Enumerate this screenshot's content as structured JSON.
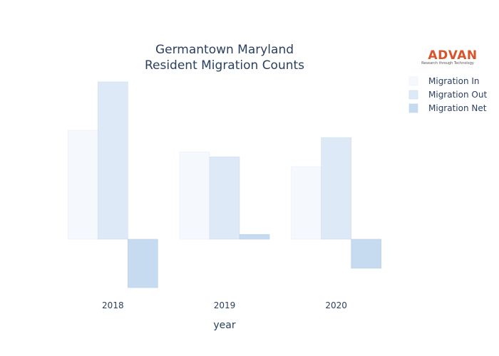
{
  "logo": {
    "name": "ADVAN",
    "tagline": "Research through Technology"
  },
  "chart_data": {
    "type": "bar",
    "title_lines": [
      "Germantown Maryland",
      "Resident Migration Counts"
    ],
    "xlabel": "year",
    "ylabel": "",
    "categories": [
      "2018",
      "2019",
      "2020"
    ],
    "ylim": [
      -1000,
      3250
    ],
    "grid": false,
    "legend_position": "top-right",
    "series": [
      {
        "name": "Migration In",
        "values": [
          2250,
          1800,
          1500
        ],
        "color": "#f5f9fe",
        "stroke": "#e6eef8"
      },
      {
        "name": "Migration Out",
        "values": [
          3250,
          1700,
          2100
        ],
        "color": "#dde9f6",
        "stroke": "#cfdef0"
      },
      {
        "name": "Migration Net",
        "values": [
          -1000,
          100,
          -600
        ],
        "color": "#c6dbf0",
        "stroke": "#b8d0ea"
      }
    ]
  }
}
